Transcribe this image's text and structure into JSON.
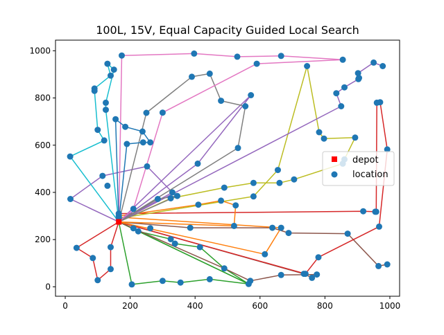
{
  "chart_data": {
    "type": "scatter",
    "title": "100L, 15V, Equal Capacity Guided Local Search",
    "xlabel": "",
    "ylabel": "",
    "xlim": [
      -30,
      1030
    ],
    "ylim": [
      -40,
      1045
    ],
    "xticks": [
      0,
      200,
      400,
      600,
      800,
      1000
    ],
    "yticks": [
      0,
      200,
      400,
      600,
      800,
      1000
    ],
    "grid": false,
    "legend": {
      "placement": "center-right",
      "entries": [
        {
          "label": "depot",
          "marker": "square",
          "color": "#ff0000"
        },
        {
          "label": "location",
          "marker": "circle",
          "color": "#1f77b4"
        }
      ]
    },
    "depot": [
      165,
      275
    ],
    "routes": [
      {
        "color": "#d62728",
        "points": [
          [
            165,
            275
          ],
          [
            35,
            165
          ],
          [
            85,
            122
          ],
          [
            100,
            28
          ],
          [
            140,
            75
          ],
          [
            140,
            168
          ],
          [
            165,
            275
          ]
        ]
      },
      {
        "color": "#2ca02c",
        "points": [
          [
            165,
            275
          ],
          [
            205,
            10
          ],
          [
            300,
            25
          ],
          [
            355,
            18
          ],
          [
            445,
            32
          ],
          [
            565,
            12
          ],
          [
            165,
            275
          ]
        ]
      },
      {
        "color": "#2ca02c",
        "points": [
          [
            165,
            275
          ],
          [
            210,
            248
          ],
          [
            225,
            235
          ],
          [
            325,
            202
          ],
          [
            338,
            183
          ],
          [
            415,
            168
          ],
          [
            490,
            78
          ],
          [
            565,
            12
          ],
          [
            165,
            275
          ]
        ]
      },
      {
        "color": "#8c564b",
        "points": [
          [
            165,
            275
          ],
          [
            490,
            78
          ],
          [
            570,
            25
          ],
          [
            665,
            50
          ],
          [
            775,
            52
          ],
          [
            760,
            38
          ],
          [
            735,
            55
          ],
          [
            165,
            275
          ]
        ]
      },
      {
        "color": "#8c564b",
        "points": [
          [
            165,
            275
          ],
          [
            385,
            250
          ],
          [
            638,
            250
          ],
          [
            688,
            228
          ],
          [
            870,
            225
          ],
          [
            965,
            88
          ],
          [
            992,
            95
          ]
        ]
      },
      {
        "color": "#d62728",
        "points": [
          [
            165,
            275
          ],
          [
            740,
            55
          ],
          [
            780,
            125
          ],
          [
            967,
            255
          ],
          [
            992,
            582
          ],
          [
            970,
            782
          ],
          [
            960,
            780
          ],
          [
            958,
            318
          ],
          [
            918,
            320
          ],
          [
            165,
            310
          ]
        ]
      },
      {
        "color": "#ff7f0e",
        "points": [
          [
            165,
            275
          ],
          [
            520,
            258
          ],
          [
            525,
            345
          ],
          [
            480,
            365
          ],
          [
            410,
            348
          ],
          [
            165,
            300
          ]
        ]
      },
      {
        "color": "#ff7f0e",
        "points": [
          [
            165,
            275
          ],
          [
            615,
            138
          ],
          [
            665,
            250
          ],
          [
            165,
            295
          ]
        ]
      },
      {
        "color": "#bcbd22",
        "points": [
          [
            165,
            275
          ],
          [
            325,
            375
          ],
          [
            490,
            420
          ],
          [
            580,
            440
          ],
          [
            660,
            440
          ],
          [
            705,
            455
          ],
          [
            855,
            522
          ],
          [
            860,
            540
          ],
          [
            893,
            632
          ],
          [
            797,
            628
          ],
          [
            782,
            655
          ],
          [
            745,
            935
          ],
          [
            655,
            495
          ],
          [
            580,
            383
          ],
          [
            165,
            290
          ]
        ]
      },
      {
        "color": "#9467bd",
        "points": [
          [
            165,
            275
          ],
          [
            16,
            372
          ],
          [
            115,
            470
          ],
          [
            252,
            510
          ],
          [
            330,
            400
          ],
          [
            165,
            275
          ]
        ]
      },
      {
        "color": "#9467bd",
        "points": [
          [
            165,
            275
          ],
          [
            850,
            765
          ],
          [
            835,
            820
          ],
          [
            860,
            845
          ],
          [
            903,
            880
          ],
          [
            902,
            905
          ],
          [
            950,
            950
          ],
          [
            978,
            935
          ]
        ]
      },
      {
        "color": "#9467bd",
        "points": [
          [
            165,
            275
          ],
          [
            408,
            522
          ],
          [
            572,
            812
          ],
          [
            165,
            275
          ]
        ]
      },
      {
        "color": "#7f7f7f",
        "points": [
          [
            165,
            275
          ],
          [
            532,
            588
          ],
          [
            555,
            765
          ],
          [
            480,
            788
          ],
          [
            445,
            903
          ],
          [
            390,
            890
          ],
          [
            250,
            737
          ],
          [
            165,
            275
          ]
        ]
      },
      {
        "color": "#7f7f7f",
        "points": [
          [
            165,
            275
          ],
          [
            285,
            372
          ],
          [
            345,
            385
          ],
          [
            165,
            275
          ]
        ]
      },
      {
        "color": "#e377c2",
        "points": [
          [
            165,
            275
          ],
          [
            174,
            980
          ],
          [
            397,
            988
          ],
          [
            530,
            975
          ],
          [
            665,
            978
          ],
          [
            855,
            962
          ],
          [
            590,
            945
          ],
          [
            300,
            738
          ],
          [
            210,
            330
          ],
          [
            165,
            275
          ]
        ]
      },
      {
        "color": "#17becf",
        "points": [
          [
            165,
            275
          ],
          [
            15,
            552
          ],
          [
            120,
            620
          ],
          [
            100,
            665
          ],
          [
            90,
            830
          ],
          [
            90,
            840
          ],
          [
            140,
            895
          ],
          [
            130,
            945
          ],
          [
            150,
            920
          ],
          [
            125,
            780
          ],
          [
            125,
            750
          ],
          [
            165,
            275
          ]
        ]
      },
      {
        "color": "#1f77b4",
        "points": [
          [
            165,
            275
          ],
          [
            190,
            605
          ],
          [
            240,
            612
          ],
          [
            262,
            612
          ],
          [
            238,
            658
          ],
          [
            185,
            678
          ],
          [
            155,
            710
          ],
          [
            165,
            275
          ]
        ]
      }
    ],
    "extra_locations": [
      [
        130,
        428
      ],
      [
        262,
        248
      ],
      [
        285,
        372
      ],
      [
        905,
        885
      ],
      [
        955,
        318
      ],
      [
        165,
        310
      ]
    ]
  }
}
